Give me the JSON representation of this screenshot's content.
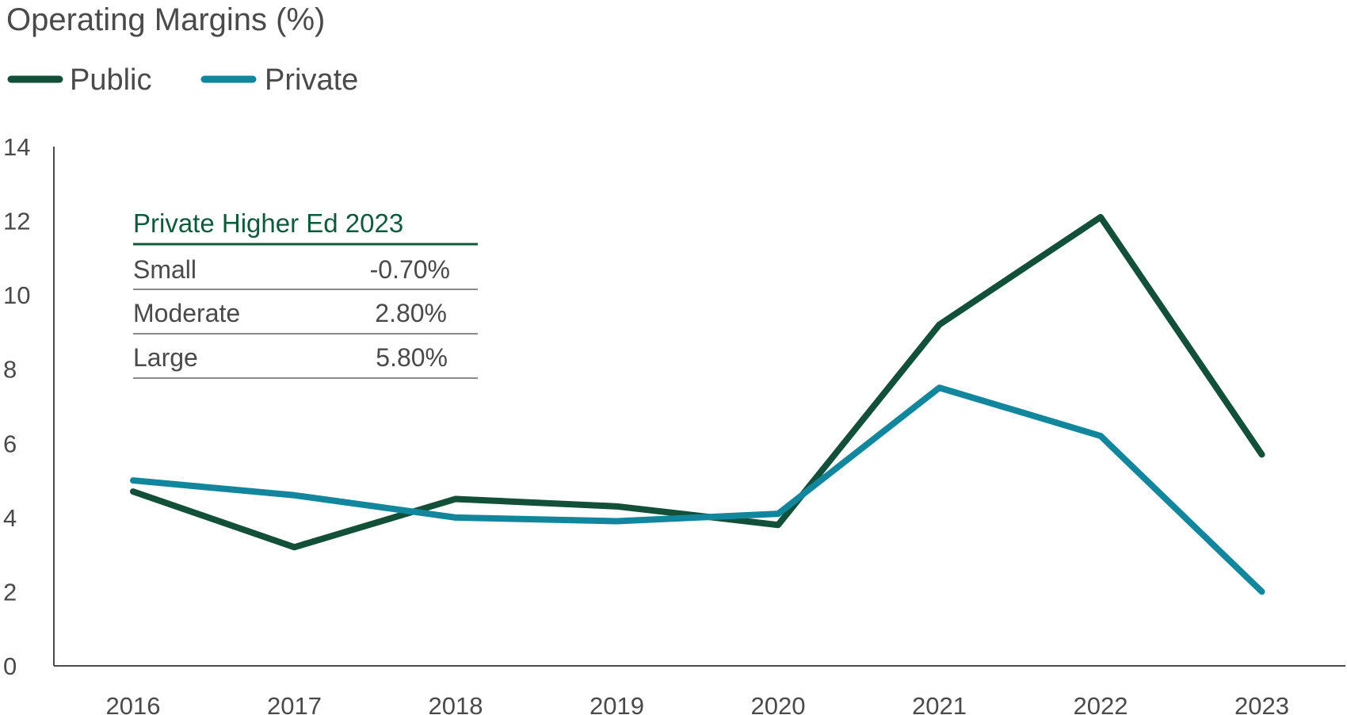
{
  "chart_data": {
    "type": "line",
    "title": "Operating Margins (%)",
    "xlabel": "",
    "ylabel": "",
    "categories": [
      "2016",
      "2017",
      "2018",
      "2019",
      "2020",
      "2021",
      "2022",
      "2023"
    ],
    "ylim": [
      0,
      14
    ],
    "y_ticks": [
      "0",
      "2",
      "4",
      "6",
      "8",
      "10",
      "12",
      "14"
    ],
    "grid": false,
    "legend_position": "top-left",
    "series": [
      {
        "name": "Public",
        "color": "#13503a",
        "values": [
          4.7,
          3.2,
          4.5,
          4.3,
          3.8,
          9.2,
          12.1,
          5.7
        ]
      },
      {
        "name": "Private",
        "color": "#12869d",
        "values": [
          5.0,
          4.6,
          4.0,
          3.9,
          4.1,
          7.5,
          6.2,
          2.0
        ]
      }
    ],
    "inset_table": {
      "title": "Private Higher Ed 2023",
      "rows": [
        {
          "label": "Small",
          "value": "-0.70%"
        },
        {
          "label": "Moderate",
          "value": "2.80%"
        },
        {
          "label": "Large",
          "value": "5.80%"
        }
      ]
    }
  }
}
